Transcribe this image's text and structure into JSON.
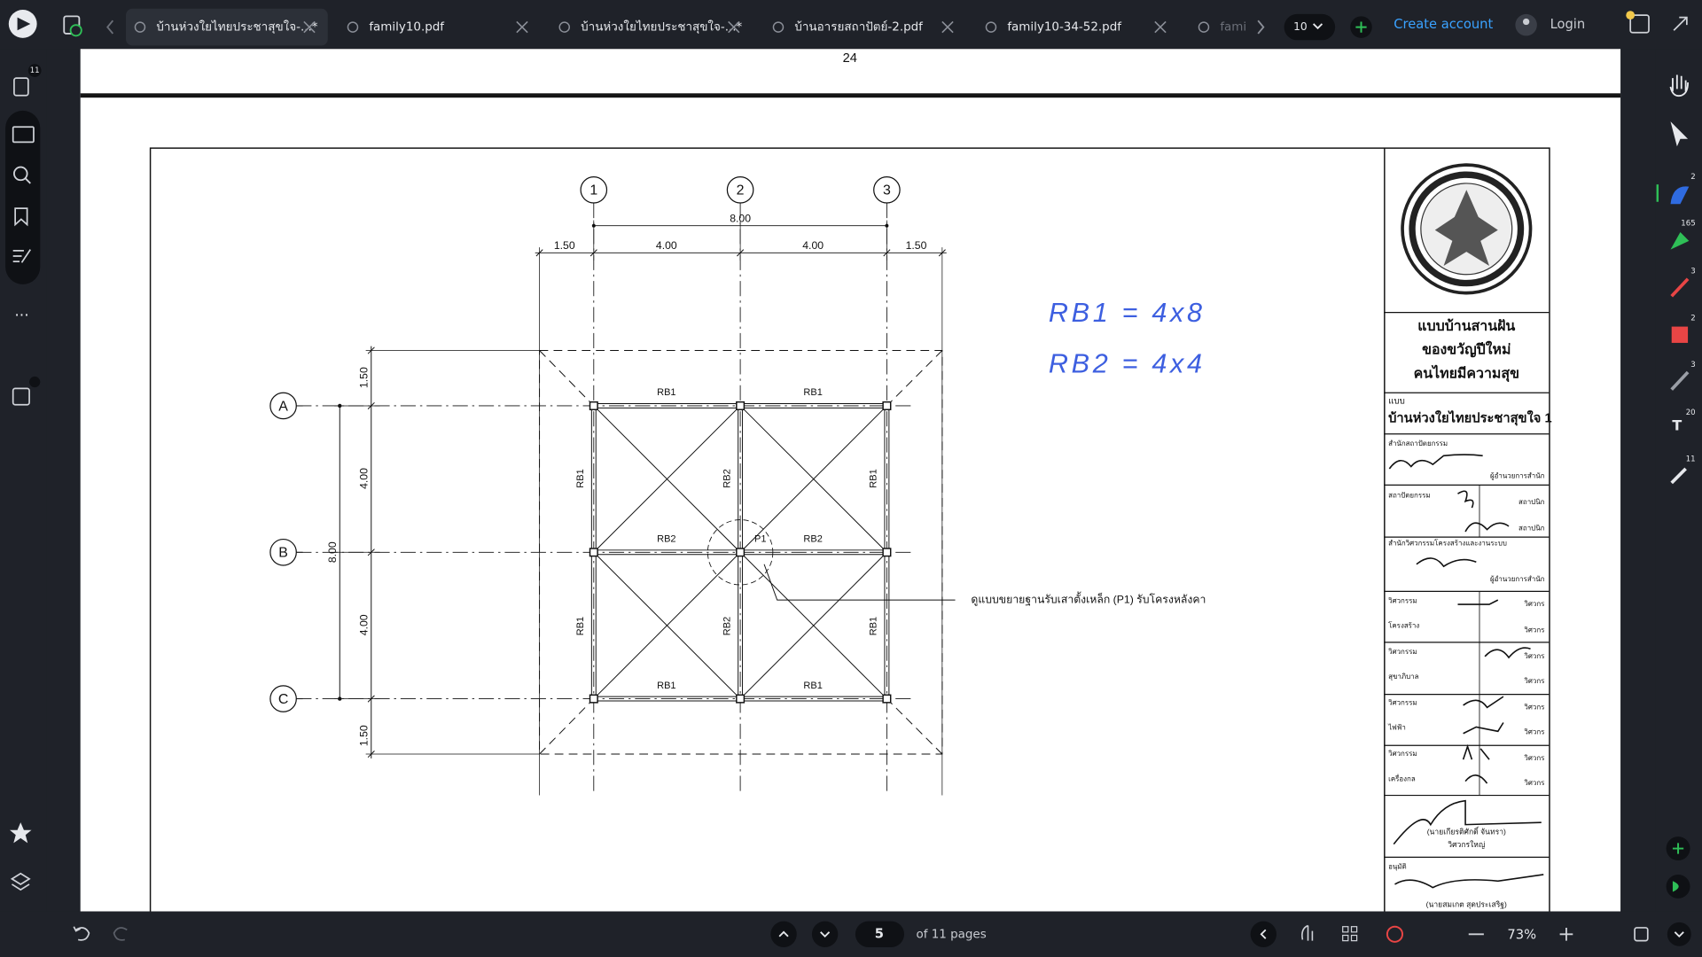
{
  "tabs": [
    "บ้านห่วงใยไทยประชาสุขใจ-...*",
    "family10.pdf",
    "บ้านห่วงใยไทยประชาสุขใจ-...*",
    "บ้านอารยสถาปัตย์-2.pdf",
    "family10-34-52.pdf",
    "fami"
  ],
  "header": {
    "tab_count": "10",
    "create_account": "Create account",
    "login": "Login",
    "badge": "11"
  },
  "right_tools": [
    "2",
    "165",
    "3",
    "2",
    "3",
    "20",
    "11"
  ],
  "document": {
    "previous_page_number": "24",
    "grid_columns": [
      "1",
      "2",
      "3"
    ],
    "grid_rows": [
      "A",
      "B",
      "C"
    ],
    "overall_dimension_top": "8.00",
    "top_dimensions": [
      "1.50",
      "4.00",
      "4.00",
      "1.50"
    ],
    "left_dimensions": [
      "1.50",
      "4.00",
      "4.00",
      "1.50"
    ],
    "overall_dimension_left": "8.00",
    "beam_labels_horizontal": [
      "RB1",
      "RB1",
      "RB2",
      "RB2",
      "RB1",
      "RB1"
    ],
    "beam_labels_vertical": [
      "RB1",
      "RB2",
      "RB1",
      "RB1",
      "RB2",
      "RB1"
    ],
    "column_label": "P1",
    "callout": "ดูแบบขยายฐานรับเสาตั้งเหล็ก (P1)  รับโครงหลังคา",
    "handwritten_notes": [
      "RB1 = 4x8",
      "RB2 = 4x4"
    ],
    "title_block": {
      "project": [
        "แบบบ้านสานฝัน",
        "ของขวัญปีใหม่",
        "คนไทยมีความสุข"
      ],
      "plan_caption": "แบบ",
      "plan_name": "บ้านห่วงใยไทยประชาสุขใจ 1",
      "labels": [
        "สำนักสถาปัตยกรรม",
        "ผู้อำนวยการสำนัก",
        "สถาปัตยกรรม",
        "สถาปนิก",
        "สถาปนิก",
        "สำนักวิศวกรรมโครงสร้างและงานระบบ",
        "ผู้อำนวยการสำนัก",
        "วิศวกรรม",
        "โครงสร้าง",
        "วิศวกรรม",
        "สุขาภิบาล",
        "วิศวกรรม",
        "ไฟฟ้า",
        "วิศวกรรม",
        "เครื่องกล",
        "(นายเกียรติศักดิ์  จันทรา)",
        "วิศวกรใหญ่",
        "อนุมัติ",
        "(นายสมเกต  สุดประเสริฐ)",
        "วิศวกร",
        "วิศวกร",
        "วิศวกร",
        "วิศวกร",
        "วิศวกร",
        "วิศวกร",
        "วิศวกร",
        "วิศวกร"
      ]
    }
  },
  "footer": {
    "current_page": "5",
    "page_total": "of 11 pages",
    "zoom": "73%"
  }
}
